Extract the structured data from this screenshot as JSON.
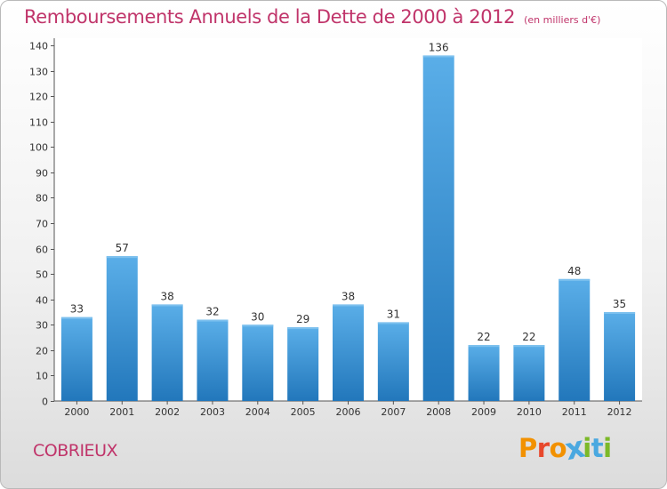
{
  "header": {
    "title": "Remboursements Annuels de la Dette de 2000 à 2012",
    "unit": "(en milliers d'€)"
  },
  "footer": {
    "commune": "COBRIEUX",
    "brand": "Proxiti"
  },
  "colors": {
    "title": "#c0346a",
    "bar_light": "#5aaee8",
    "bar_dark": "#2277bb",
    "brand_letters": [
      "#f29100",
      "#e8482c",
      "#f29100",
      "#4aa8e0",
      "#7cb928",
      "#4aa8e0",
      "#7cb928"
    ]
  },
  "chart_data": {
    "type": "bar",
    "categories": [
      "2000",
      "2001",
      "2002",
      "2003",
      "2004",
      "2005",
      "2006",
      "2007",
      "2008",
      "2009",
      "2010",
      "2011",
      "2012"
    ],
    "values": [
      33,
      57,
      38,
      32,
      30,
      29,
      38,
      31,
      136,
      22,
      22,
      48,
      35
    ],
    "data_labels": [
      "33",
      "57",
      "38",
      "32",
      "30",
      "29",
      "38",
      "31",
      "136",
      "22",
      "22",
      "48",
      "35"
    ],
    "ylim": [
      0,
      140
    ],
    "yticks": [
      0,
      10,
      20,
      30,
      40,
      50,
      60,
      70,
      80,
      90,
      100,
      110,
      120,
      130,
      140
    ],
    "ytick_labels": [
      "0",
      "10",
      "20",
      "30",
      "40",
      "50",
      "60",
      "70",
      "80",
      "90",
      "100",
      "110",
      "120",
      "130",
      "140"
    ],
    "grid": false,
    "legend": "none"
  }
}
